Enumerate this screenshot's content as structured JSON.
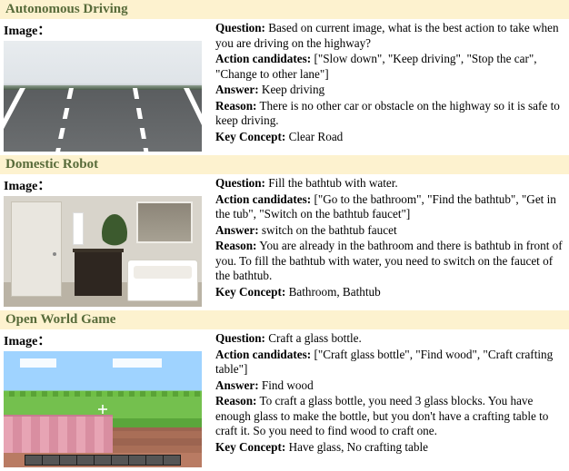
{
  "labels": {
    "image": "Image："
  },
  "field_labels": {
    "question": "Question:",
    "candidates": "Action candidates:",
    "answer": "Answer:",
    "reason": "Reason:",
    "key_concept": "Key Concept:"
  },
  "colors": {
    "header_bg": "#fdf2cf",
    "header_text": "#586b3a",
    "body_text": "#000000"
  },
  "sections": [
    {
      "id": "autonomous-driving",
      "title": "Autonomous Driving",
      "question": "Based on current image, what is the best action to take when you are driving on the highway?",
      "candidates": "[\"Slow down\", \"Keep driving\", \"Stop the car\", \"Change to other lane\"]",
      "answer": "Keep driving",
      "reason": "There is no other car or obstacle on the highway so it is safe to keep driving.",
      "key_concept": "Clear Road"
    },
    {
      "id": "domestic-robot",
      "title": "Domestic Robot",
      "question": "Fill the bathtub with water.",
      "candidates": "[\"Go to the bathroom\", \"Find the bathtub\", \"Get in the tub\", \"Switch on the bathtub faucet\"]",
      "answer": "switch on the bathtub faucet",
      "reason": "You are already in the bathroom and there is bathtub in front of you. To fill the bathtub with water, you need to switch on the faucet of the bathtub.",
      "key_concept": "Bathroom, Bathtub"
    },
    {
      "id": "open-world-game",
      "title": "Open World Game",
      "question": "Craft a glass bottle.",
      "candidates": "[\"Craft glass bottle\", \"Find wood\", \"Craft crafting table\"]",
      "answer": "Find wood",
      "reason": "To craft a glass bottle, you need 3 glass blocks. You have enough glass to make the bottle, but you  don't have a crafting table to craft it. So you need to find wood to craft one.",
      "key_concept": "Have glass, No crafting table"
    }
  ]
}
